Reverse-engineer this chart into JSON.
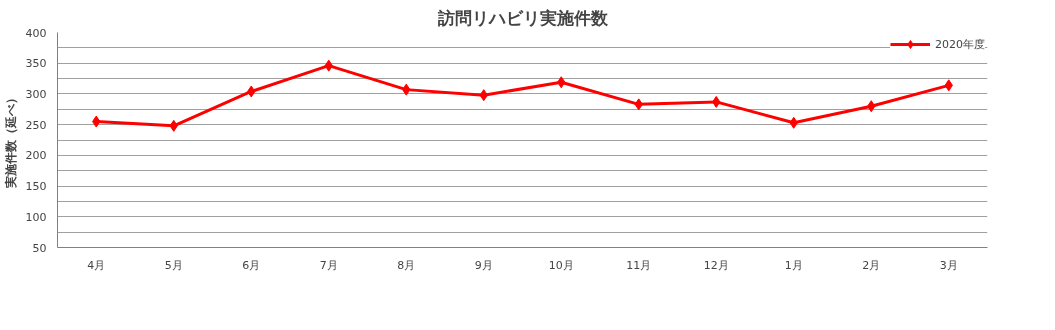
{
  "chart_data": {
    "type": "line",
    "title": "訪問リハビリ実施件数",
    "ylabel": "実施件数（延べ）",
    "categories": [
      "4月",
      "5月",
      "6月",
      "7月",
      "8月",
      "9月",
      "10月",
      "11月",
      "12月",
      "1月",
      "2月",
      "3月"
    ],
    "series": [
      {
        "name": "2020年度",
        "color": "#ff0000",
        "values": [
          255,
          248,
          304,
          346,
          307,
          298,
          319,
          283,
          287,
          253,
          280,
          314
        ]
      }
    ],
    "ylim": [
      50,
      400
    ],
    "yticks": [
      50,
      {
        "value": 75,
        "label": null
      },
      100,
      {
        "value": 125,
        "label": null
      },
      150,
      {
        "value": 175,
        "label": null
      },
      200,
      {
        "value": 225,
        "label": null
      },
      250,
      {
        "value": 275,
        "label": null
      },
      300,
      {
        "value": 325,
        "label": null
      },
      350,
      {
        "value": 375,
        "label": null
      },
      400
    ],
    "grid": "y",
    "legend": "top right",
    "marker": "diamond",
    "line_style": "solid"
  }
}
